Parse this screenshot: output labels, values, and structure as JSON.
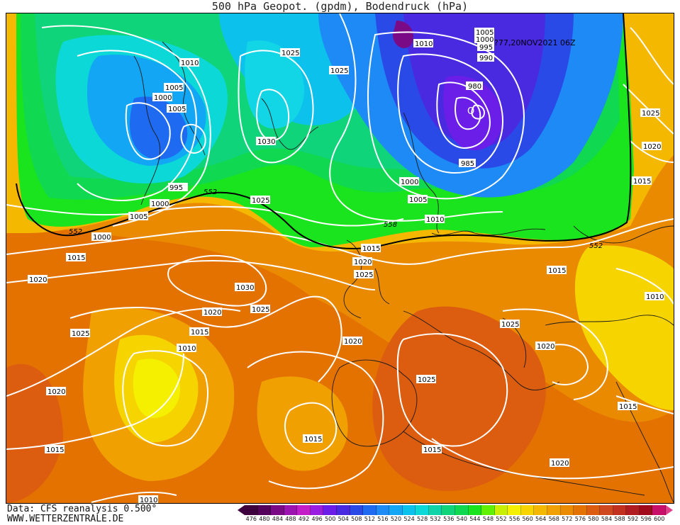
{
  "title": "500 hPa Geopot. (gpdm), Bodendruck (hPa)",
  "run_label": "?77,20NOV2021 06Z",
  "footer": {
    "data_source": "Data: CFS reanalysis 0.500°",
    "website": "WWW.WETTERZENTRALE.DE"
  },
  "legend": {
    "ticks": [
      "476",
      "480",
      "484",
      "488",
      "492",
      "496",
      "500",
      "504",
      "508",
      "512",
      "516",
      "520",
      "524",
      "528",
      "532",
      "536",
      "540",
      "544",
      "548",
      "552",
      "556",
      "560",
      "564",
      "568",
      "572",
      "576",
      "580",
      "584",
      "588",
      "592",
      "596",
      "600"
    ],
    "colors": [
      "#3d003d",
      "#55005a",
      "#7a0a86",
      "#9c14b0",
      "#c41ec8",
      "#9a1ee0",
      "#6a1ee8",
      "#4a2ae0",
      "#2a4ae8",
      "#1e6af0",
      "#1e8af5",
      "#12a6f5",
      "#0cc2ec",
      "#0cd8d8",
      "#10d4a8",
      "#10d47a",
      "#10d850",
      "#1ae41e",
      "#60f000",
      "#c8f000",
      "#f5f000",
      "#f5d400",
      "#f5b800",
      "#f0a000",
      "#ea8a00",
      "#e47200",
      "#dc5c10",
      "#d04820",
      "#c23020",
      "#b01c20",
      "#a00c1c",
      "#c8106a"
    ],
    "overflow_color": "#e0408a"
  },
  "map": {
    "isobar_labels": [
      "1010",
      "1005",
      "1000",
      "1005",
      "1000",
      "995",
      "1000",
      "1005",
      "1010",
      "1025",
      "1030",
      "1025",
      "1010",
      "1005",
      "1000",
      "995",
      "990",
      "980",
      "985",
      "1000",
      "1005",
      "1010",
      "1025",
      "1020",
      "1015",
      "1015",
      "1020",
      "1025",
      "1015",
      "1020",
      "1010",
      "1030",
      "1025",
      "1020",
      "1015",
      "1010",
      "1025",
      "1020",
      "1025",
      "1020",
      "1015",
      "1020",
      "1015",
      "1015",
      "1025",
      "1020",
      "1010",
      "1010",
      "1015",
      "1020",
      "1025",
      "1015",
      "1025"
    ],
    "height_labels": [
      "552",
      "552",
      "558",
      "552"
    ],
    "low_center_marker": "O"
  }
}
